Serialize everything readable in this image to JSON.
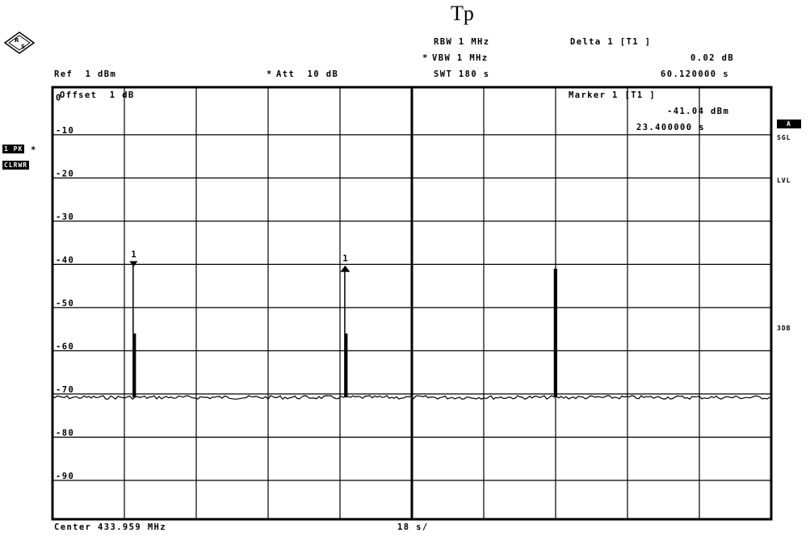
{
  "header": {
    "title": "Tp",
    "ref_label": "Ref  1 dBm",
    "att_label": "Att  10 dB",
    "att_mark": "*",
    "rbw_label": "RBW 1 MHz",
    "vbw_label": "VBW 1 MHz",
    "vbw_mark": "*",
    "swt_label": "SWT 180 s",
    "delta_label": "Delta 1 [T1 ]",
    "delta_value": "0.02 dB",
    "delta_time": "60.120000 s"
  },
  "left_panel": {
    "badge_trace": "1 PK",
    "badge_trace_mark": "*",
    "badge_mode": "CLRWR"
  },
  "right_panel": {
    "badge_a": "A",
    "sgl": "SGL",
    "lvl": "LVL",
    "sdb": "3DB"
  },
  "marker_box": {
    "label": "Marker 1 [T1 ]",
    "value": "-41.04 dBm",
    "time": "23.400000 s"
  },
  "footer": {
    "center_label": "Center 433.959 MHz",
    "span_label": "18 s/"
  },
  "offset_label": "Offset  1 dB",
  "colors": {
    "trace": "#000000",
    "grid": "#000000",
    "background": "#ffffff"
  },
  "chart_data": {
    "type": "line",
    "title": "Tp",
    "y_tick_labels": [
      "0",
      "-10",
      "-20",
      "-30",
      "-40",
      "-50",
      "-60",
      "-70",
      "-80",
      "-90"
    ],
    "ylim": [
      -99,
      1
    ],
    "xlim": [
      0,
      180
    ],
    "x_unit": "s",
    "y_unit": "dBm",
    "grid": true,
    "noise_floor": -70.8,
    "pulses": [
      {
        "x": 20.5,
        "peak": -40,
        "tail": -56,
        "label": "1",
        "marker": "down-triangle"
      },
      {
        "x": 73.5,
        "peak": -41,
        "tail": -56,
        "label": "1",
        "marker": "up-triangle"
      },
      {
        "x": 126.0,
        "peak": -41,
        "tail": -41,
        "label": "",
        "marker": ""
      }
    ]
  }
}
